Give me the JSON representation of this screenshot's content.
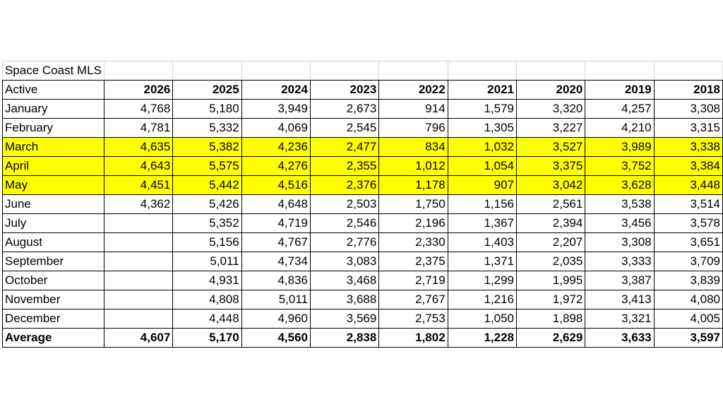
{
  "sheet": {
    "title": "Space Coast MLS",
    "header_label": "Active",
    "average_label": "Average",
    "highlight_color": "#ffff00"
  },
  "chart_data": {
    "type": "table",
    "title": "Space Coast MLS",
    "row_header": "Active",
    "columns": [
      "2026",
      "2025",
      "2024",
      "2023",
      "2022",
      "2021",
      "2020",
      "2019",
      "2018"
    ],
    "rows": [
      {
        "label": "January",
        "highlight": false,
        "values": [
          "4,768",
          "5,180",
          "3,949",
          "2,673",
          "914",
          "1,579",
          "3,320",
          "4,257",
          "3,308"
        ]
      },
      {
        "label": "February",
        "highlight": false,
        "values": [
          "4,781",
          "5,332",
          "4,069",
          "2,545",
          "796",
          "1,305",
          "3,227",
          "4,210",
          "3,315"
        ]
      },
      {
        "label": "March",
        "highlight": true,
        "values": [
          "4,635",
          "5,382",
          "4,236",
          "2,477",
          "834",
          "1,032",
          "3,527",
          "3,989",
          "3,338"
        ]
      },
      {
        "label": "April",
        "highlight": true,
        "values": [
          "4,643",
          "5,575",
          "4,276",
          "2,355",
          "1,012",
          "1,054",
          "3,375",
          "3,752",
          "3,384"
        ]
      },
      {
        "label": "May",
        "highlight": true,
        "values": [
          "4,451",
          "5,442",
          "4,516",
          "2,376",
          "1,178",
          "907",
          "3,042",
          "3,628",
          "3,448"
        ]
      },
      {
        "label": "June",
        "highlight": false,
        "values": [
          "4,362",
          "5,426",
          "4,648",
          "2,503",
          "1,750",
          "1,156",
          "2,561",
          "3,538",
          "3,514"
        ]
      },
      {
        "label": "July",
        "highlight": false,
        "values": [
          "",
          "5,352",
          "4,719",
          "2,546",
          "2,196",
          "1,367",
          "2,394",
          "3,456",
          "3,578"
        ]
      },
      {
        "label": "August",
        "highlight": false,
        "values": [
          "",
          "5,156",
          "4,767",
          "2,776",
          "2,330",
          "1,403",
          "2,207",
          "3,308",
          "3,651"
        ]
      },
      {
        "label": "September",
        "highlight": false,
        "values": [
          "",
          "5,011",
          "4,734",
          "3,083",
          "2,375",
          "1,371",
          "2,035",
          "3,333",
          "3,709"
        ]
      },
      {
        "label": "October",
        "highlight": false,
        "values": [
          "",
          "4,931",
          "4,836",
          "3,468",
          "2,719",
          "1,299",
          "1,995",
          "3,387",
          "3,839"
        ]
      },
      {
        "label": "November",
        "highlight": false,
        "values": [
          "",
          "4,808",
          "5,011",
          "3,688",
          "2,767",
          "1,216",
          "1,972",
          "3,413",
          "4,080"
        ]
      },
      {
        "label": "December",
        "highlight": false,
        "values": [
          "",
          "4,448",
          "4,960",
          "3,569",
          "2,753",
          "1,050",
          "1,898",
          "3,321",
          "4,005"
        ]
      }
    ],
    "average": {
      "label": "Average",
      "values": [
        "4,607",
        "5,170",
        "4,560",
        "2,838",
        "1,802",
        "1,228",
        "2,629",
        "3,633",
        "3,597"
      ]
    }
  }
}
